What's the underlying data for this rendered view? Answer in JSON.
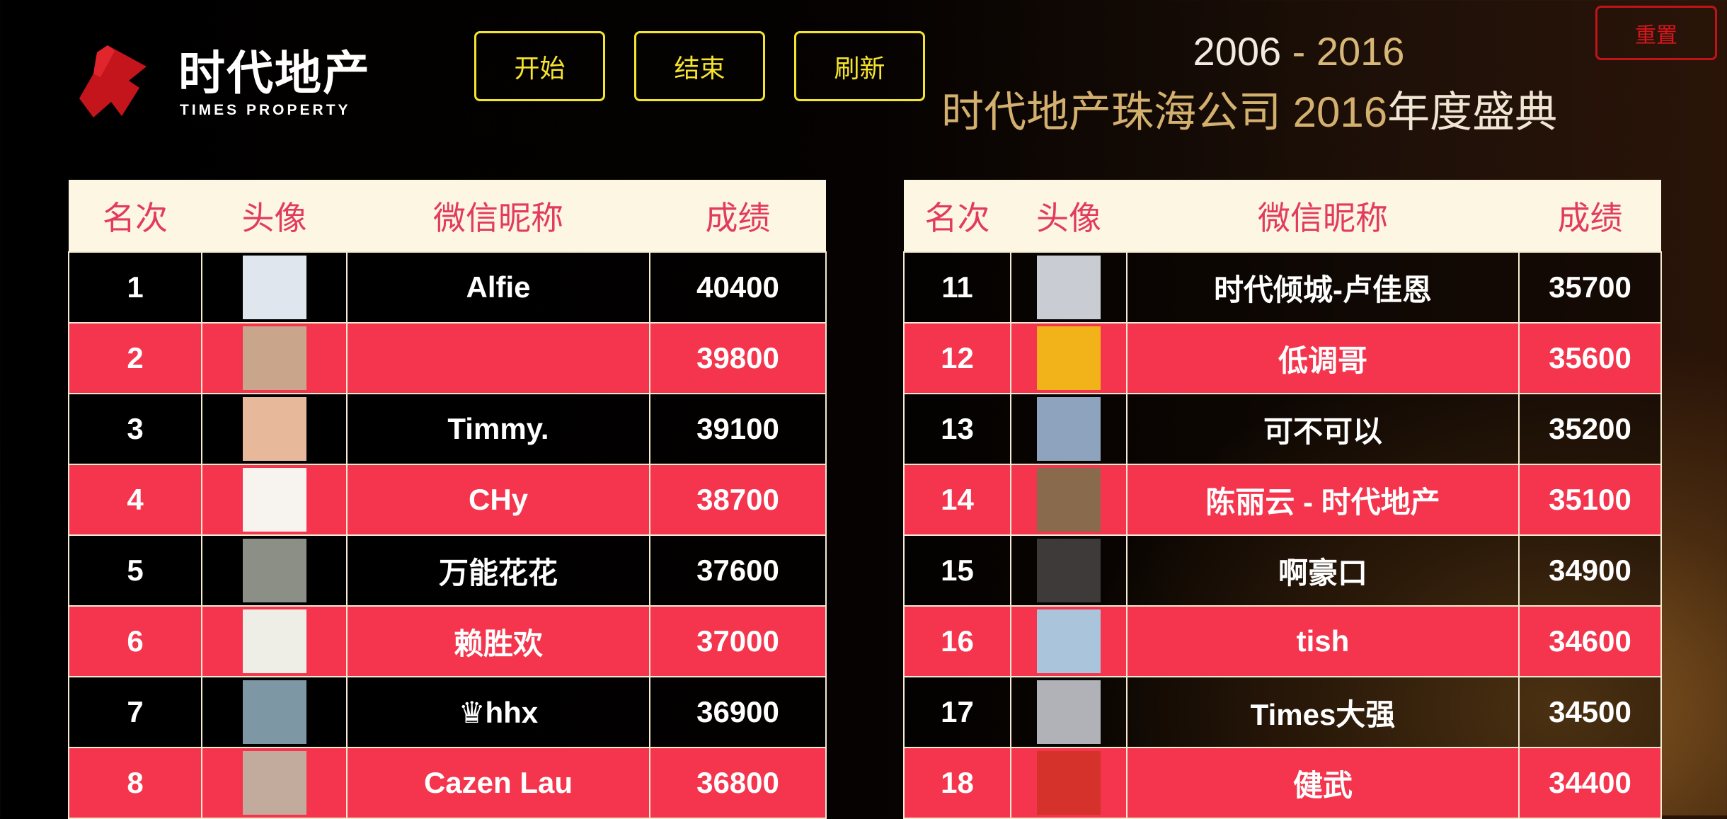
{
  "logo": {
    "cn": "时代地产",
    "en": "TIMES PROPERTY",
    "color": "#c4151c"
  },
  "buttons": {
    "start": "开始",
    "end": "结束",
    "refresh": "刷新",
    "reset": "重置"
  },
  "event": {
    "years_start": "2006",
    "years_sep": " - ",
    "years_end": "2016",
    "title_gold": "时代地产珠海公司 2016",
    "title_white": "年度盛典"
  },
  "columns": {
    "rank": "名次",
    "avatar": "头像",
    "nickname": "微信昵称",
    "score": "成绩"
  },
  "colors": {
    "highlight_row": "#f4354d",
    "header_bg": "#fcf6e2",
    "header_text": "#e23b5c",
    "button_border": "#f2e530",
    "reset_border": "#c0141a"
  },
  "left": [
    {
      "rank": "1",
      "name": "Alfie",
      "score": "40400",
      "avatar": "#dfe6ee"
    },
    {
      "rank": "2",
      "name": "",
      "score": "39800",
      "avatar": "#c9a58c"
    },
    {
      "rank": "3",
      "name": "Timmy.",
      "score": "39100",
      "avatar": "#e8b89a"
    },
    {
      "rank": "4",
      "name": "CHy",
      "score": "38700",
      "avatar": "#f7f3ee"
    },
    {
      "rank": "5",
      "name": "万能花花",
      "score": "37600",
      "avatar": "#8b8f86"
    },
    {
      "rank": "6",
      "name": "赖胜欢",
      "score": "37000",
      "avatar": "#eeeee6"
    },
    {
      "rank": "7",
      "name": "♛hhx",
      "score": "36900",
      "avatar": "#7d97a4"
    },
    {
      "rank": "8",
      "name": "Cazen Lau",
      "score": "36800",
      "avatar": "#c2aa9c"
    }
  ],
  "right": [
    {
      "rank": "11",
      "name": "时代倾城-卢佳恩",
      "score": "35700",
      "avatar": "#c9ccd2"
    },
    {
      "rank": "12",
      "name": "低调哥",
      "score": "35600",
      "avatar": "#f2b21a"
    },
    {
      "rank": "13",
      "name": "可不可以",
      "score": "35200",
      "avatar": "#8ea3bd"
    },
    {
      "rank": "14",
      "name": "陈丽云 - 时代地产",
      "score": "35100",
      "avatar": "#8a6a4c"
    },
    {
      "rank": "15",
      "name": "啊豪口",
      "score": "34900",
      "avatar": "#3e3a3a"
    },
    {
      "rank": "16",
      "name": "tish",
      "score": "34600",
      "avatar": "#a9c4db"
    },
    {
      "rank": "17",
      "name": "Times大强",
      "score": "34500",
      "avatar": "#b0b2b8"
    },
    {
      "rank": "18",
      "name": "健武",
      "score": "34400",
      "avatar": "#d4322a"
    }
  ]
}
